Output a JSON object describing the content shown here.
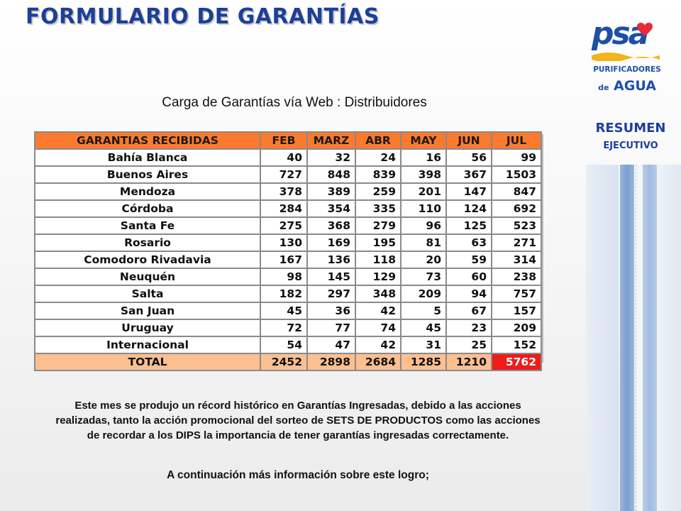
{
  "title": "FORMULARIO DE GARANTÍAS",
  "subtitle": "Carga de Garantías vía Web : Distribuidores",
  "logo": {
    "brand": "psa",
    "line1": "PURIFICADORES",
    "line2_small": "de",
    "line2": "AGUA",
    "heart_color": "#e52a3a",
    "wave_color": "#f4b41a"
  },
  "side": {
    "label1": "RESUMEN",
    "label2": "EJECUTIVO"
  },
  "table": {
    "headers": [
      "GARANTIAS RECIBIDAS",
      "FEB",
      "MARZ",
      "ABR",
      "MAY",
      "JUN",
      "JUL"
    ],
    "rows": [
      {
        "name": "Bahía Blanca",
        "values": [
          "40",
          "32",
          "24",
          "16",
          "56",
          "99"
        ]
      },
      {
        "name": "Buenos Aires",
        "values": [
          "727",
          "848",
          "839",
          "398",
          "367",
          "1503"
        ]
      },
      {
        "name": "Mendoza",
        "values": [
          "378",
          "389",
          "259",
          "201",
          "147",
          "847"
        ]
      },
      {
        "name": "Córdoba",
        "values": [
          "284",
          "354",
          "335",
          "110",
          "124",
          "692"
        ]
      },
      {
        "name": "Santa Fe",
        "values": [
          "275",
          "368",
          "279",
          "96",
          "125",
          "523"
        ]
      },
      {
        "name": "Rosario",
        "values": [
          "130",
          "169",
          "195",
          "81",
          "63",
          "271"
        ]
      },
      {
        "name": "Comodoro Rivadavia",
        "values": [
          "167",
          "136",
          "118",
          "20",
          "59",
          "314"
        ]
      },
      {
        "name": "Neuquén",
        "values": [
          "98",
          "145",
          "129",
          "73",
          "60",
          "238"
        ]
      },
      {
        "name": "Salta",
        "values": [
          "182",
          "297",
          "348",
          "209",
          "94",
          "757"
        ]
      },
      {
        "name": "San Juan",
        "values": [
          "45",
          "36",
          "42",
          "5",
          "67",
          "157"
        ]
      },
      {
        "name": "Uruguay",
        "values": [
          "72",
          "77",
          "74",
          "45",
          "23",
          "209"
        ]
      },
      {
        "name": "Internacional",
        "values": [
          "54",
          "47",
          "42",
          "31",
          "25",
          "152"
        ]
      }
    ],
    "total": {
      "name": "TOTAL",
      "values": [
        "2452",
        "2898",
        "2684",
        "1285",
        "1210",
        "5762"
      ]
    },
    "header_color": "#fb7a2e",
    "total_color": "#fbbf90",
    "highlight_color": "#ef1b1b"
  },
  "body": {
    "p1": "Este mes se produjo un récord histórico en Garantías Ingresadas, debido a las acciones realizadas, tanto la acción promocional del sorteo de SETS DE PRODUCTOS como las acciones de recordar a los DIPS la importancia de tener garantías ingresadas correctamente.",
    "p2": "A continuación más información sobre este logro;"
  }
}
